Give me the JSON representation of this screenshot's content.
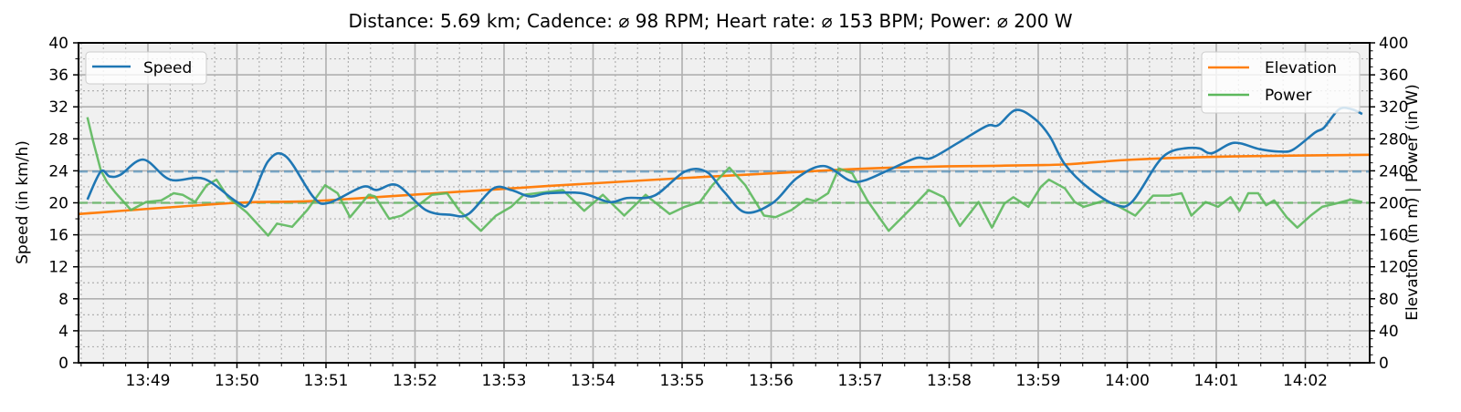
{
  "chart_data": {
    "type": "line",
    "title": "Distance: 5.69 km; Cadence: ⌀ 98 RPM; Heart rate: ⌀ 153 BPM; Power: ⌀ 200 W",
    "x_unit": "minutes after 13:48",
    "xlim": [
      0.22,
      14.73
    ],
    "xticks": [
      {
        "t": 1,
        "label": "13:49"
      },
      {
        "t": 2,
        "label": "13:50"
      },
      {
        "t": 3,
        "label": "13:51"
      },
      {
        "t": 4,
        "label": "13:52"
      },
      {
        "t": 5,
        "label": "13:53"
      },
      {
        "t": 6,
        "label": "13:54"
      },
      {
        "t": 7,
        "label": "13:55"
      },
      {
        "t": 8,
        "label": "13:56"
      },
      {
        "t": 9,
        "label": "13:57"
      },
      {
        "t": 10,
        "label": "13:58"
      },
      {
        "t": 11,
        "label": "13:59"
      },
      {
        "t": 12,
        "label": "14:00"
      },
      {
        "t": 13,
        "label": "14:01"
      },
      {
        "t": 14,
        "label": "14:02"
      }
    ],
    "ylabel_left": "Speed (in km/h)",
    "ylim_left": [
      0,
      40
    ],
    "yticks_left": [
      "0",
      "4",
      "8",
      "12",
      "16",
      "20",
      "24",
      "28",
      "32",
      "36",
      "40"
    ],
    "ylabel_right": "Elevation (in m) | Power (in W)",
    "ylim_right": [
      0,
      400
    ],
    "yticks_right": [
      "0",
      "40",
      "80",
      "120",
      "160",
      "200",
      "240",
      "280",
      "320",
      "360",
      "400"
    ],
    "grid": true,
    "legend_left": {
      "placement": "top-left",
      "entries": [
        "Speed"
      ]
    },
    "legend_right": {
      "placement": "top-right",
      "entries": [
        "Elevation",
        "Power"
      ]
    },
    "colors": {
      "speed": "#1f77b4",
      "elevation": "#ff7f0e",
      "power": "#5cb85c"
    },
    "averages": {
      "speed": 23.9,
      "power": 200
    },
    "series": [
      {
        "name": "Speed",
        "axis": "left",
        "points": [
          [
            0.32,
            20.4
          ],
          [
            0.47,
            23.9
          ],
          [
            0.57,
            23.3
          ],
          [
            0.69,
            23.5
          ],
          [
            0.95,
            25.4
          ],
          [
            1.25,
            22.9
          ],
          [
            1.63,
            23.0
          ],
          [
            2.0,
            20.1
          ],
          [
            2.14,
            20.0
          ],
          [
            2.35,
            25.2
          ],
          [
            2.55,
            25.8
          ],
          [
            2.86,
            20.7
          ],
          [
            3.03,
            20.0
          ],
          [
            3.41,
            22.0
          ],
          [
            3.57,
            21.6
          ],
          [
            3.8,
            22.2
          ],
          [
            4.12,
            19.1
          ],
          [
            4.4,
            18.5
          ],
          [
            4.6,
            18.6
          ],
          [
            4.88,
            21.8
          ],
          [
            5.08,
            21.6
          ],
          [
            5.29,
            20.8
          ],
          [
            5.49,
            21.2
          ],
          [
            5.87,
            21.2
          ],
          [
            6.18,
            20.1
          ],
          [
            6.38,
            20.6
          ],
          [
            6.69,
            20.9
          ],
          [
            7.03,
            23.9
          ],
          [
            7.27,
            23.9
          ],
          [
            7.47,
            21.4
          ],
          [
            7.71,
            18.8
          ],
          [
            8.02,
            20.0
          ],
          [
            8.29,
            23.1
          ],
          [
            8.59,
            24.6
          ],
          [
            8.88,
            22.8
          ],
          [
            9.05,
            22.8
          ],
          [
            9.36,
            24.3
          ],
          [
            9.63,
            25.6
          ],
          [
            9.8,
            25.6
          ],
          [
            10.1,
            27.5
          ],
          [
            10.42,
            29.6
          ],
          [
            10.55,
            29.7
          ],
          [
            10.75,
            31.6
          ],
          [
            10.96,
            30.5
          ],
          [
            11.13,
            28.3
          ],
          [
            11.3,
            24.8
          ],
          [
            11.57,
            21.8
          ],
          [
            11.88,
            19.7
          ],
          [
            12.06,
            20.2
          ],
          [
            12.33,
            24.8
          ],
          [
            12.47,
            26.3
          ],
          [
            12.64,
            26.8
          ],
          [
            12.81,
            26.8
          ],
          [
            12.95,
            26.2
          ],
          [
            13.2,
            27.5
          ],
          [
            13.49,
            26.7
          ],
          [
            13.73,
            26.4
          ],
          [
            13.87,
            26.7
          ],
          [
            14.11,
            28.8
          ],
          [
            14.21,
            29.4
          ],
          [
            14.38,
            31.7
          ],
          [
            14.52,
            31.7
          ],
          [
            14.64,
            31.1
          ]
        ]
      },
      {
        "name": "Elevation",
        "axis": "right",
        "points": [
          [
            0.22,
            186
          ],
          [
            2.0,
            200
          ],
          [
            3.0,
            203
          ],
          [
            5.49,
            221
          ],
          [
            8.88,
            242
          ],
          [
            10.62,
            246.5
          ],
          [
            11.3,
            248
          ],
          [
            12.06,
            254
          ],
          [
            13.2,
            258
          ],
          [
            14.73,
            260
          ]
        ]
      },
      {
        "name": "Power",
        "axis": "right",
        "points": [
          [
            0.32,
            307
          ],
          [
            0.38,
            279
          ],
          [
            0.47,
            241
          ],
          [
            0.54,
            226
          ],
          [
            0.64,
            212
          ],
          [
            0.81,
            191
          ],
          [
            0.98,
            201
          ],
          [
            1.15,
            203
          ],
          [
            1.29,
            212
          ],
          [
            1.39,
            210
          ],
          [
            1.53,
            201
          ],
          [
            1.66,
            222
          ],
          [
            1.77,
            229
          ],
          [
            1.9,
            207
          ],
          [
            2.11,
            188
          ],
          [
            2.35,
            159
          ],
          [
            2.45,
            174
          ],
          [
            2.62,
            170
          ],
          [
            2.79,
            191
          ],
          [
            2.99,
            222
          ],
          [
            3.13,
            212
          ],
          [
            3.27,
            182
          ],
          [
            3.48,
            210
          ],
          [
            3.55,
            208
          ],
          [
            3.71,
            180
          ],
          [
            3.85,
            184
          ],
          [
            4.06,
            199
          ],
          [
            4.19,
            210
          ],
          [
            4.36,
            212
          ],
          [
            4.5,
            190
          ],
          [
            4.74,
            165
          ],
          [
            4.91,
            184
          ],
          [
            5.08,
            195
          ],
          [
            5.22,
            210
          ],
          [
            5.66,
            216
          ],
          [
            5.9,
            190
          ],
          [
            6.11,
            210
          ],
          [
            6.35,
            184
          ],
          [
            6.59,
            210
          ],
          [
            6.86,
            186
          ],
          [
            7.03,
            195
          ],
          [
            7.2,
            201
          ],
          [
            7.34,
            222
          ],
          [
            7.53,
            244
          ],
          [
            7.71,
            222
          ],
          [
            7.92,
            184
          ],
          [
            8.05,
            182
          ],
          [
            8.23,
            191
          ],
          [
            8.4,
            205
          ],
          [
            8.5,
            202
          ],
          [
            8.64,
            212
          ],
          [
            8.76,
            243
          ],
          [
            8.91,
            237
          ],
          [
            9.08,
            203
          ],
          [
            9.32,
            165
          ],
          [
            9.59,
            195
          ],
          [
            9.77,
            216
          ],
          [
            9.94,
            207
          ],
          [
            10.12,
            171
          ],
          [
            10.33,
            201
          ],
          [
            10.48,
            169
          ],
          [
            10.62,
            199
          ],
          [
            10.72,
            207
          ],
          [
            10.89,
            195
          ],
          [
            11.03,
            220
          ],
          [
            11.12,
            229
          ],
          [
            11.3,
            218
          ],
          [
            11.41,
            201
          ],
          [
            11.51,
            195
          ],
          [
            11.75,
            203
          ],
          [
            11.88,
            197
          ],
          [
            12.09,
            184
          ],
          [
            12.29,
            209
          ],
          [
            12.47,
            209
          ],
          [
            12.61,
            212
          ],
          [
            12.72,
            184
          ],
          [
            12.88,
            201
          ],
          [
            13.02,
            195
          ],
          [
            13.16,
            207
          ],
          [
            13.26,
            190
          ],
          [
            13.36,
            212
          ],
          [
            13.47,
            212
          ],
          [
            13.56,
            197
          ],
          [
            13.65,
            203
          ],
          [
            13.79,
            182
          ],
          [
            13.91,
            169
          ],
          [
            14.06,
            184
          ],
          [
            14.19,
            195
          ],
          [
            14.34,
            199
          ],
          [
            14.51,
            204
          ],
          [
            14.64,
            201
          ]
        ]
      }
    ]
  }
}
